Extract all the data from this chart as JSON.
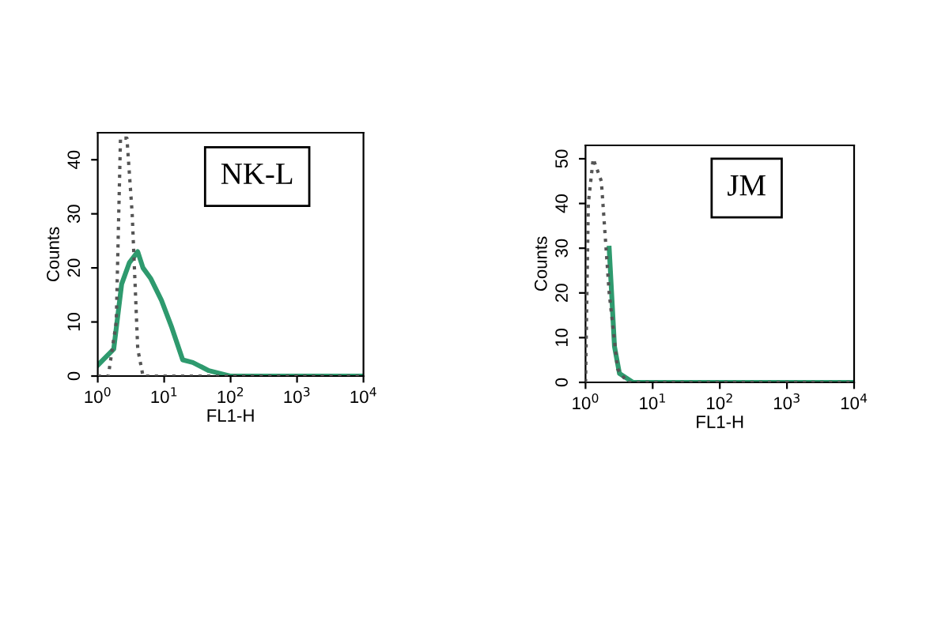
{
  "chart_data": [
    {
      "type": "line",
      "xlabel": "FL1-H",
      "ylabel": "Counts",
      "annotations": [
        "NK-L"
      ],
      "log": "x",
      "xlim": [
        1,
        10000
      ],
      "ylim": [
        0,
        45
      ],
      "xticks": [
        {
          "value": 1,
          "label": "10$^{0}$"
        },
        {
          "value": 10,
          "label": "10$^{1}$"
        },
        {
          "value": 100,
          "label": "10$^{2}$"
        },
        {
          "value": 1000,
          "label": "10$^{3}$"
        },
        {
          "value": 10000,
          "label": "10$^{4}$"
        }
      ],
      "yticks": [
        0,
        10,
        20,
        30,
        40
      ],
      "series": [
        {
          "color": "#555555",
          "line_style": "dotted",
          "x": [
            1,
            1.44,
            1.9,
            2.2,
            2.75,
            3.3,
            4.0,
            4.8,
            10000
          ],
          "values": [
            0,
            0,
            10,
            44,
            44,
            30,
            5,
            0,
            0
          ]
        },
        {
          "color": "#2e9a6e",
          "line_style": "solid",
          "x": [
            1,
            1.74,
            2.29,
            3.0,
            4.0,
            4.8,
            6.3,
            9.1,
            13,
            19,
            27,
            47,
            98,
            10000
          ],
          "values": [
            2,
            5,
            17,
            21,
            23,
            20,
            18,
            14,
            9,
            3,
            2.5,
            1,
            0,
            0
          ]
        }
      ]
    },
    {
      "type": "line",
      "xlabel": "FL1-H",
      "ylabel": "Counts",
      "annotations": [
        "JM"
      ],
      "log": "x",
      "xlim": [
        1,
        10000
      ],
      "ylim": [
        0,
        53
      ],
      "xticks": [
        {
          "value": 1,
          "label": "10$^{0}$"
        },
        {
          "value": 10,
          "label": "10$^{1}$"
        },
        {
          "value": 100,
          "label": "10$^{2}$"
        },
        {
          "value": 1000,
          "label": "10$^{3}$"
        },
        {
          "value": 10000,
          "label": "10$^{4}$"
        }
      ],
      "yticks": [
        0,
        10,
        20,
        30,
        40,
        50
      ],
      "series": [
        {
          "color": "#555555",
          "line_style": "dotted",
          "x": [
            1,
            1.1,
            1.3,
            1.72,
            2.25,
            3.0,
            4.2,
            10000
          ],
          "values": [
            0,
            40,
            50,
            45,
            20,
            3,
            0,
            0
          ]
        },
        {
          "color": "#2e9a6e",
          "line_style": "solid",
          "x": [
            2.25,
            2.7,
            3.2,
            5.1,
            10000
          ],
          "values": [
            30,
            8,
            2,
            0,
            0
          ]
        }
      ]
    }
  ]
}
